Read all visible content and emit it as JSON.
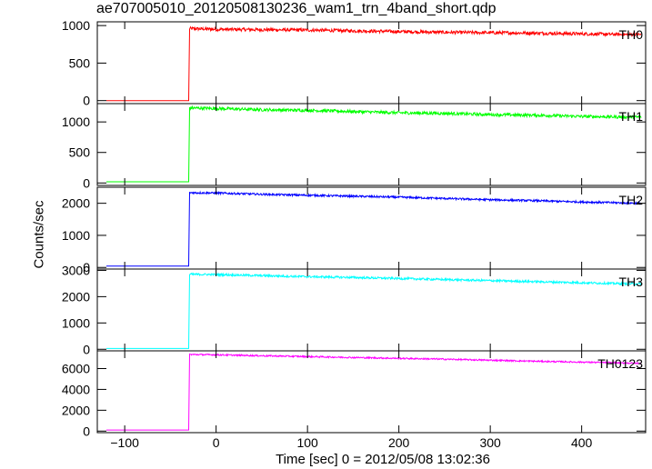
{
  "chart_data": {
    "type": "line",
    "title": "ae707005010_20120508130236_wam1_trn_4band_short.qdp",
    "xlabel": "Time [sec] 0 = 2012/05/08 13:02:36",
    "ylabel": "Counts/sec",
    "xlim": [
      -130,
      470
    ],
    "x_ticks": [
      -100,
      0,
      100,
      200,
      300,
      400
    ],
    "x_tick_labels": [
      "−100",
      "0",
      "100",
      "200",
      "300",
      "400"
    ],
    "step_time": -30,
    "series": [
      {
        "name": "TH0",
        "color": "#ff0000",
        "ylim": [
          -40,
          1050
        ],
        "y_ticks": [
          0,
          500,
          1000
        ],
        "x": [
          -120,
          -30,
          -29,
          0,
          50,
          100,
          150,
          200,
          250,
          300,
          350,
          400,
          450,
          465
        ],
        "y": [
          0,
          0,
          960,
          950,
          945,
          940,
          930,
          920,
          910,
          905,
          900,
          890,
          880,
          880
        ],
        "noise": 22
      },
      {
        "name": "TH1",
        "color": "#00ff00",
        "ylim": [
          -40,
          1300
        ],
        "y_ticks": [
          0,
          500,
          1000
        ],
        "x": [
          -120,
          -30,
          -29,
          0,
          50,
          100,
          150,
          200,
          250,
          300,
          350,
          400,
          450,
          465
        ],
        "y": [
          20,
          20,
          1230,
          1220,
          1200,
          1190,
          1170,
          1150,
          1140,
          1120,
          1110,
          1090,
          1080,
          1080
        ],
        "noise": 25
      },
      {
        "name": "TH2",
        "color": "#0000ff",
        "ylim": [
          -50,
          2500
        ],
        "y_ticks": [
          0,
          1000,
          2000
        ],
        "x": [
          -120,
          -30,
          -29,
          0,
          50,
          100,
          150,
          200,
          250,
          300,
          350,
          400,
          450,
          465
        ],
        "y": [
          40,
          40,
          2330,
          2320,
          2280,
          2250,
          2220,
          2190,
          2150,
          2110,
          2080,
          2040,
          2010,
          2000
        ],
        "noise": 30
      },
      {
        "name": "TH3",
        "color": "#00ffff",
        "ylim": [
          -60,
          3050
        ],
        "y_ticks": [
          0,
          1000,
          2000,
          3000
        ],
        "x": [
          -120,
          -30,
          -29,
          0,
          50,
          100,
          150,
          200,
          250,
          300,
          350,
          400,
          450,
          465
        ],
        "y": [
          30,
          30,
          2850,
          2840,
          2800,
          2760,
          2730,
          2690,
          2650,
          2610,
          2570,
          2530,
          2490,
          2480
        ],
        "noise": 40
      },
      {
        "name": "TH0123",
        "color": "#ff00ff",
        "ylim": [
          -150,
          7700
        ],
        "y_ticks": [
          0,
          2000,
          4000,
          6000
        ],
        "x": [
          -120,
          -30,
          -29,
          0,
          50,
          100,
          150,
          200,
          250,
          300,
          350,
          400,
          450,
          465
        ],
        "y": [
          100,
          100,
          7350,
          7320,
          7230,
          7150,
          7060,
          6980,
          6900,
          6800,
          6700,
          6620,
          6530,
          6500
        ],
        "noise": 70
      }
    ]
  }
}
